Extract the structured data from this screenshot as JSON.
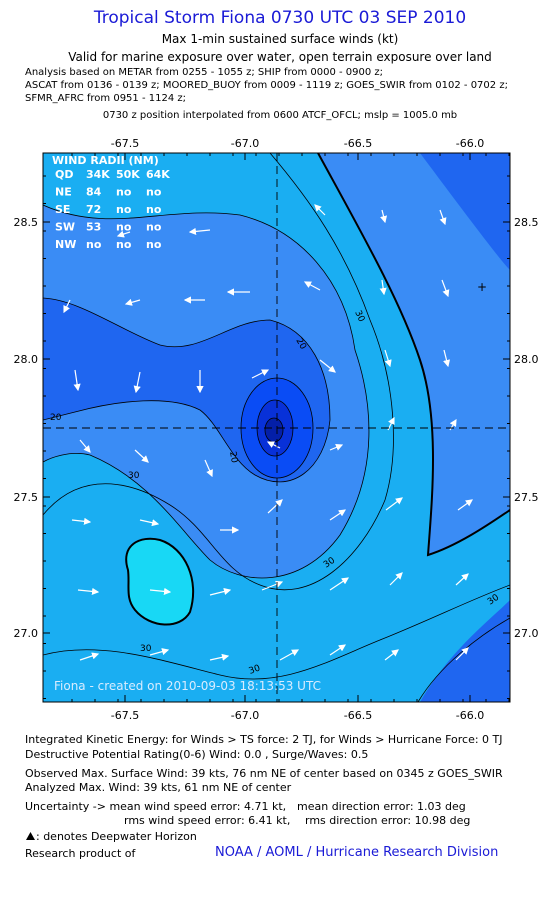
{
  "header": {
    "title": "Tropical Storm Fiona 0730 UTC 03 SEP 2010",
    "subtitle1": "Max 1-min sustained surface winds (kt)",
    "subtitle2": "Valid for marine exposure over water, open terrain exposure over land",
    "analysis_lines": [
      "Analysis based on METAR from 0255 - 1055 z; SHIP from 0000 - 0900 z;",
      "ASCAT from 0136 - 0139 z; MOORED_BUOY from 0009 - 1119 z; GOES_SWIR from 0102 - 0702 z;",
      "SFMR_AFRC from 0951 - 1124 z;"
    ],
    "position_note": "0730 z position interpolated from 0600 ATCF_OFCL; mslp = 1005.0 mb"
  },
  "map": {
    "lon_ticks": [
      "-67.5",
      "-67.0",
      "-66.5",
      "-66.0"
    ],
    "lat_ticks": [
      "28.5",
      "28.0",
      "27.5",
      "27.0"
    ],
    "lon_range": [
      -67.85,
      -65.85
    ],
    "lat_range": [
      26.78,
      28.75
    ],
    "center": {
      "lon": -66.82,
      "lat": 27.74
    },
    "contour_labels": [
      "20",
      "20",
      "20",
      "30",
      "30",
      "30",
      "30",
      "30",
      "30"
    ],
    "wind_radii": {
      "title": "WIND RADII (NM)",
      "header": [
        "QD",
        "34K",
        "50K",
        "64K"
      ],
      "rows": [
        [
          "NE",
          "84",
          "no",
          "no"
        ],
        [
          "SE",
          "72",
          "no",
          "no"
        ],
        [
          "SW",
          "53",
          "no",
          "no"
        ],
        [
          "NW",
          "no",
          "no",
          "no"
        ]
      ]
    },
    "watermark": "Fiona - created on 2010-09-03 18:13:53 UTC",
    "marker_plus": "+",
    "colors": {
      "deep": "#0a3fe0",
      "dark": "#1f66f0",
      "mid": "#3a8cf5",
      "light": "#1aaef2",
      "cyan": "#18d8f5",
      "core1": "#0a4cf5",
      "core2": "#0831d8",
      "core3": "#041fa8"
    }
  },
  "footer": {
    "ike": "Integrated Kinetic Energy:  for Winds > TS force: 2 TJ,  for Winds > Hurricane Force: 0 TJ",
    "dpr": "Destructive Potential Rating(0-6)   Wind: 0.0 , Surge/Waves: 0.5",
    "obs_max": "Observed Max. Surface Wind: 39 kts, 76 nm NE of center based on 0345 z GOES_SWIR",
    "an_max": "Analyzed Max. Wind: 39 kts, 61 nm NE of center",
    "unc1_left": "Uncertainty -> mean wind speed error: 4.71 kt,",
    "unc1_right": "mean direction error: 1.03 deg",
    "unc2_left": "rms wind speed error: 6.41 kt,",
    "unc2_right": "rms direction error: 10.98 deg",
    "deepwater": ": denotes Deepwater Horizon",
    "research": "Research product of",
    "noaa": "NOAA / AOML / Hurricane Research Division"
  }
}
